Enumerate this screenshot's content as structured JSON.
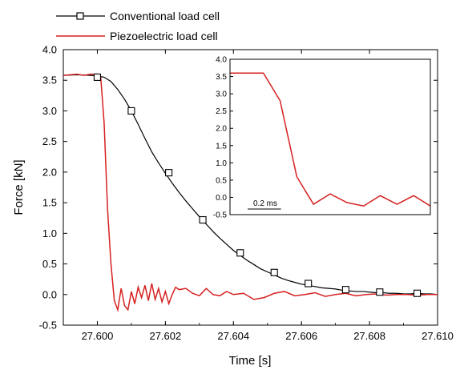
{
  "chart_data": {
    "main": {
      "type": "line",
      "xlabel": "Time [s]",
      "ylabel": "Force [kN]",
      "xlim": [
        27.599,
        27.61
      ],
      "ylim": [
        -0.5,
        4.0
      ],
      "xticks": [
        27.6,
        27.602,
        27.604,
        27.606,
        27.608,
        27.61
      ],
      "xtick_labels": [
        "27.600",
        "27.602",
        "27.604",
        "27.606",
        "27.608",
        "27.610"
      ],
      "yticks": [
        -0.5,
        0.0,
        0.5,
        1.0,
        1.5,
        2.0,
        2.5,
        3.0,
        3.5,
        4.0
      ],
      "ytick_labels": [
        "-0.5",
        "0.0",
        "0.5",
        "1.0",
        "1.5",
        "2.0",
        "2.5",
        "3.0",
        "3.5",
        "4.0"
      ],
      "grid": false,
      "legend_position": "top-left, outside above plot",
      "series": [
        {
          "name": "Conventional load cell",
          "color": "#000000",
          "marker": "open-square",
          "x": [
            27.599,
            27.5994,
            27.5998,
            27.6,
            27.6002,
            27.6004,
            27.6006,
            27.6008,
            27.601,
            27.6012,
            27.6014,
            27.6016,
            27.6018,
            27.602,
            27.6022,
            27.6024,
            27.6026,
            27.6028,
            27.603,
            27.6032,
            27.6034,
            27.6036,
            27.6038,
            27.604,
            27.6042,
            27.6044,
            27.6046,
            27.6048,
            27.605,
            27.6052,
            27.6054,
            27.6056,
            27.6058,
            27.606,
            27.6062,
            27.6064,
            27.6066,
            27.6068,
            27.607,
            27.6072,
            27.6074,
            27.6076,
            27.6078,
            27.608,
            27.6082,
            27.6084,
            27.6086,
            27.6088,
            27.609,
            27.6092,
            27.6094,
            27.6096,
            27.6098,
            27.61
          ],
          "y": [
            3.58,
            3.59,
            3.58,
            3.57,
            3.55,
            3.48,
            3.35,
            3.19,
            3.0,
            2.78,
            2.55,
            2.33,
            2.15,
            1.98,
            1.82,
            1.67,
            1.53,
            1.4,
            1.27,
            1.15,
            1.03,
            0.92,
            0.82,
            0.72,
            0.64,
            0.56,
            0.49,
            0.42,
            0.37,
            0.32,
            0.27,
            0.23,
            0.2,
            0.17,
            0.15,
            0.13,
            0.11,
            0.1,
            0.09,
            0.07,
            0.06,
            0.05,
            0.05,
            0.04,
            0.03,
            0.03,
            0.02,
            0.02,
            0.01,
            0.01,
            0.02,
            0.01,
            0.01,
            0.0
          ],
          "marker_x": [
            27.6,
            27.601,
            27.6021,
            27.6031,
            27.6042,
            27.6052,
            27.6062,
            27.6073,
            27.6083,
            27.6094
          ],
          "marker_y": [
            3.55,
            3.0,
            1.99,
            1.22,
            0.68,
            0.36,
            0.18,
            0.08,
            0.04,
            0.02
          ]
        },
        {
          "name": "Piezoelectric load cell",
          "color": "#d62020",
          "x": [
            27.599,
            27.5994,
            27.5996,
            27.5998,
            27.5999,
            27.6,
            27.6001,
            27.6002,
            27.6003,
            27.6004,
            27.6005,
            27.6006,
            27.6007,
            27.6008,
            27.6009,
            27.601,
            27.6011,
            27.6012,
            27.6013,
            27.6014,
            27.6015,
            27.6016,
            27.6017,
            27.6018,
            27.6019,
            27.602,
            27.6021,
            27.6022,
            27.6023,
            27.6024,
            27.6026,
            27.6028,
            27.603,
            27.6032,
            27.6034,
            27.6036,
            27.6038,
            27.604,
            27.6043,
            27.6046,
            27.6049,
            27.6052,
            27.6055,
            27.6058,
            27.6061,
            27.6064,
            27.6067,
            27.607,
            27.6073,
            27.6076,
            27.6079,
            27.6082,
            27.6085,
            27.6088,
            27.6091,
            27.6094,
            27.6097,
            27.61
          ],
          "y": [
            3.58,
            3.6,
            3.58,
            3.6,
            3.6,
            3.6,
            3.55,
            2.8,
            1.4,
            0.5,
            -0.1,
            -0.25,
            0.1,
            -0.18,
            -0.25,
            0.05,
            -0.15,
            0.12,
            -0.05,
            0.15,
            -0.1,
            0.18,
            -0.08,
            0.1,
            -0.12,
            0.05,
            -0.15,
            0.0,
            0.12,
            0.08,
            0.1,
            0.02,
            -0.02,
            0.1,
            0.0,
            -0.02,
            0.05,
            0.0,
            0.02,
            -0.08,
            -0.05,
            0.02,
            0.05,
            -0.02,
            0.0,
            0.03,
            -0.03,
            0.0,
            0.02,
            -0.02,
            0.0,
            0.01,
            -0.01,
            0.0,
            0.0,
            -0.01,
            0.0,
            0.0
          ]
        }
      ]
    },
    "inset": {
      "type": "line",
      "ylim": [
        -0.5,
        4.0
      ],
      "yticks": [
        -0.5,
        0.0,
        0.5,
        1.0,
        1.5,
        2.0,
        2.5,
        3.0,
        3.5,
        4.0
      ],
      "ytick_labels": [
        "-0.5",
        "0.0",
        "0.5",
        "1.0",
        "1.5",
        "2.0",
        "2.5",
        "3.0",
        "3.5",
        "4.0"
      ],
      "scale_bar_label": "0.2 ms",
      "x_range_ms": [
        0,
        1.2
      ],
      "scale_bar_ms": 0.2,
      "series": [
        {
          "name": "Piezoelectric load cell",
          "color": "#d62020",
          "x_ms": [
            0.0,
            0.1,
            0.2,
            0.3,
            0.4,
            0.5,
            0.6,
            0.7,
            0.8,
            0.9,
            1.0,
            1.1,
            1.2
          ],
          "y": [
            3.6,
            3.6,
            3.6,
            2.8,
            0.6,
            -0.2,
            0.1,
            -0.15,
            -0.25,
            0.05,
            -0.2,
            0.05,
            -0.25
          ]
        }
      ]
    }
  }
}
